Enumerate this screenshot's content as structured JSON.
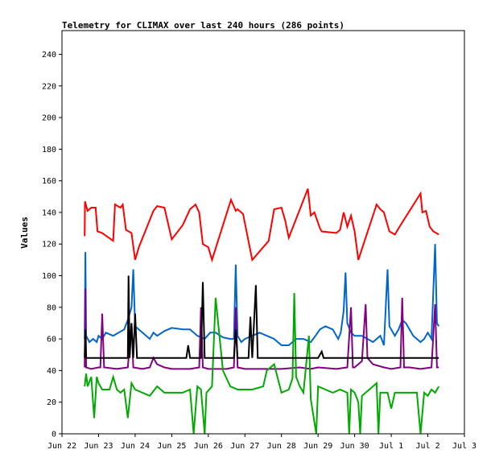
{
  "chart_data": {
    "type": "line",
    "title": "Telemetry for CLIMAX over last 240 hours (286 points)",
    "ylabel": "Values",
    "xlabel": "",
    "xlim": [
      0,
      11
    ],
    "ylim": [
      0,
      255
    ],
    "y_ticks": [
      0,
      20,
      40,
      60,
      80,
      100,
      120,
      140,
      160,
      180,
      200,
      220,
      240
    ],
    "x_ticks": [
      {
        "x": 0,
        "label": "Jun 22"
      },
      {
        "x": 1,
        "label": "Jun 23"
      },
      {
        "x": 2,
        "label": "Jun 24"
      },
      {
        "x": 3,
        "label": "Jun 25"
      },
      {
        "x": 4,
        "label": "Jun 26"
      },
      {
        "x": 5,
        "label": "Jun 27"
      },
      {
        "x": 6,
        "label": "Jun 28"
      },
      {
        "x": 7,
        "label": "Jun 29"
      },
      {
        "x": 8,
        "label": "Jun 30"
      },
      {
        "x": 9,
        "label": "Jul 1"
      },
      {
        "x": 10,
        "label": "Jul 2"
      },
      {
        "x": 11,
        "label": "Jul 3"
      }
    ],
    "grid": false,
    "legend": "none",
    "series": [
      {
        "color": "#ff0000",
        "points": [
          [
            0.62,
            125
          ],
          [
            0.63,
            147
          ],
          [
            0.7,
            141
          ],
          [
            0.8,
            143
          ],
          [
            0.92,
            143
          ],
          [
            0.97,
            128
          ],
          [
            1.1,
            127
          ],
          [
            1.4,
            122
          ],
          [
            1.45,
            145
          ],
          [
            1.6,
            143
          ],
          [
            1.66,
            145
          ],
          [
            1.75,
            129
          ],
          [
            1.9,
            127
          ],
          [
            2.0,
            110
          ],
          [
            2.1,
            118
          ],
          [
            2.5,
            141
          ],
          [
            2.6,
            144
          ],
          [
            2.8,
            143
          ],
          [
            3.0,
            123
          ],
          [
            3.3,
            132
          ],
          [
            3.5,
            142
          ],
          [
            3.65,
            145
          ],
          [
            3.75,
            140
          ],
          [
            3.85,
            120
          ],
          [
            4.0,
            118
          ],
          [
            4.1,
            110
          ],
          [
            4.62,
            148
          ],
          [
            4.75,
            141
          ],
          [
            4.8,
            142
          ],
          [
            4.95,
            139
          ],
          [
            5.2,
            110
          ],
          [
            5.65,
            122
          ],
          [
            5.8,
            142
          ],
          [
            6.0,
            143
          ],
          [
            6.1,
            135
          ],
          [
            6.2,
            124
          ],
          [
            6.72,
            155
          ],
          [
            6.8,
            138
          ],
          [
            6.9,
            140
          ],
          [
            7.05,
            130
          ],
          [
            7.1,
            128
          ],
          [
            7.5,
            127
          ],
          [
            7.6,
            129
          ],
          [
            7.7,
            140
          ],
          [
            7.8,
            131
          ],
          [
            7.9,
            138
          ],
          [
            8.0,
            128
          ],
          [
            8.1,
            110
          ],
          [
            8.6,
            145
          ],
          [
            8.7,
            142
          ],
          [
            8.8,
            140
          ],
          [
            8.95,
            128
          ],
          [
            9.1,
            126
          ],
          [
            9.2,
            130
          ],
          [
            9.8,
            152
          ],
          [
            9.85,
            140
          ],
          [
            9.95,
            141
          ],
          [
            10.05,
            131
          ],
          [
            10.15,
            128
          ],
          [
            10.3,
            126
          ]
        ]
      },
      {
        "color": "#0066cc",
        "points": [
          [
            0.62,
            60
          ],
          [
            0.64,
            115
          ],
          [
            0.66,
            62
          ],
          [
            0.75,
            58
          ],
          [
            0.85,
            60
          ],
          [
            0.95,
            58
          ],
          [
            1.0,
            62
          ],
          [
            1.1,
            60
          ],
          [
            1.2,
            64
          ],
          [
            1.4,
            62
          ],
          [
            1.55,
            64
          ],
          [
            1.7,
            66
          ],
          [
            1.8,
            72
          ],
          [
            1.9,
            80
          ],
          [
            1.95,
            104
          ],
          [
            2.0,
            68
          ],
          [
            2.2,
            64
          ],
          [
            2.4,
            60
          ],
          [
            2.5,
            64
          ],
          [
            2.6,
            62
          ],
          [
            2.8,
            65
          ],
          [
            3.0,
            67
          ],
          [
            3.3,
            66
          ],
          [
            3.5,
            66
          ],
          [
            3.7,
            62
          ],
          [
            3.9,
            60
          ],
          [
            4.05,
            64
          ],
          [
            4.2,
            64
          ],
          [
            4.4,
            61
          ],
          [
            4.6,
            60
          ],
          [
            4.7,
            60
          ],
          [
            4.75,
            107
          ],
          [
            4.8,
            62
          ],
          [
            4.9,
            58
          ],
          [
            5.0,
            60
          ],
          [
            5.2,
            62
          ],
          [
            5.4,
            64
          ],
          [
            5.6,
            62
          ],
          [
            5.8,
            60
          ],
          [
            6.0,
            56
          ],
          [
            6.2,
            56
          ],
          [
            6.4,
            60
          ],
          [
            6.6,
            60
          ],
          [
            6.8,
            58
          ],
          [
            6.9,
            61
          ],
          [
            7.05,
            66
          ],
          [
            7.2,
            68
          ],
          [
            7.4,
            66
          ],
          [
            7.55,
            60
          ],
          [
            7.62,
            64
          ],
          [
            7.7,
            78
          ],
          [
            7.75,
            102
          ],
          [
            7.8,
            70
          ],
          [
            7.9,
            64
          ],
          [
            8.0,
            62
          ],
          [
            8.2,
            62
          ],
          [
            8.5,
            58
          ],
          [
            8.7,
            62
          ],
          [
            8.8,
            56
          ],
          [
            8.9,
            104
          ],
          [
            8.95,
            68
          ],
          [
            9.1,
            62
          ],
          [
            9.2,
            66
          ],
          [
            9.3,
            72
          ],
          [
            9.4,
            70
          ],
          [
            9.6,
            62
          ],
          [
            9.8,
            58
          ],
          [
            9.9,
            60
          ],
          [
            10.0,
            64
          ],
          [
            10.1,
            60
          ],
          [
            10.2,
            120
          ],
          [
            10.25,
            70
          ],
          [
            10.3,
            68
          ]
        ]
      },
      {
        "color": "#800080",
        "points": [
          [
            0.62,
            42
          ],
          [
            0.64,
            92
          ],
          [
            0.66,
            42
          ],
          [
            0.8,
            41
          ],
          [
            1.0,
            42
          ],
          [
            1.05,
            42
          ],
          [
            1.1,
            76
          ],
          [
            1.15,
            42
          ],
          [
            1.5,
            41
          ],
          [
            1.8,
            42
          ],
          [
            1.9,
            70
          ],
          [
            1.95,
            42
          ],
          [
            2.2,
            41
          ],
          [
            2.4,
            42
          ],
          [
            2.5,
            48
          ],
          [
            2.6,
            44
          ],
          [
            2.8,
            42
          ],
          [
            3.0,
            41
          ],
          [
            3.5,
            41
          ],
          [
            3.75,
            42
          ],
          [
            3.8,
            80
          ],
          [
            3.85,
            42
          ],
          [
            4.0,
            41
          ],
          [
            4.5,
            41
          ],
          [
            4.7,
            42
          ],
          [
            4.75,
            80
          ],
          [
            4.8,
            42
          ],
          [
            5.0,
            41
          ],
          [
            6.0,
            41
          ],
          [
            6.5,
            42
          ],
          [
            6.8,
            41
          ],
          [
            7.0,
            42
          ],
          [
            7.5,
            41
          ],
          [
            7.8,
            42
          ],
          [
            7.9,
            80
          ],
          [
            7.95,
            42
          ],
          [
            8.0,
            42
          ],
          [
            8.2,
            46
          ],
          [
            8.3,
            82
          ],
          [
            8.35,
            48
          ],
          [
            8.5,
            44
          ],
          [
            8.8,
            42
          ],
          [
            9.0,
            41
          ],
          [
            9.25,
            42
          ],
          [
            9.3,
            86
          ],
          [
            9.35,
            42
          ],
          [
            9.5,
            42
          ],
          [
            9.8,
            41
          ],
          [
            10.1,
            42
          ],
          [
            10.2,
            82
          ],
          [
            10.25,
            42
          ],
          [
            10.3,
            42
          ]
        ]
      },
      {
        "color": "#00aa00",
        "points": [
          [
            0.62,
            30
          ],
          [
            0.66,
            38
          ],
          [
            0.7,
            30
          ],
          [
            0.8,
            36
          ],
          [
            0.88,
            10
          ],
          [
            0.95,
            36
          ],
          [
            1.0,
            32
          ],
          [
            1.1,
            28
          ],
          [
            1.3,
            28
          ],
          [
            1.4,
            36
          ],
          [
            1.5,
            28
          ],
          [
            1.6,
            26
          ],
          [
            1.7,
            28
          ],
          [
            1.8,
            10
          ],
          [
            1.9,
            32
          ],
          [
            2.0,
            28
          ],
          [
            2.2,
            26
          ],
          [
            2.4,
            24
          ],
          [
            2.6,
            30
          ],
          [
            2.8,
            26
          ],
          [
            3.0,
            26
          ],
          [
            3.3,
            26
          ],
          [
            3.5,
            28
          ],
          [
            3.6,
            0
          ],
          [
            3.7,
            30
          ],
          [
            3.8,
            28
          ],
          [
            3.9,
            0
          ],
          [
            3.95,
            26
          ],
          [
            4.1,
            30
          ],
          [
            4.2,
            86
          ],
          [
            4.4,
            40
          ],
          [
            4.6,
            30
          ],
          [
            4.8,
            28
          ],
          [
            5.0,
            28
          ],
          [
            5.2,
            28
          ],
          [
            5.5,
            30
          ],
          [
            5.6,
            40
          ],
          [
            5.8,
            44
          ],
          [
            6.0,
            26
          ],
          [
            6.2,
            28
          ],
          [
            6.3,
            35
          ],
          [
            6.35,
            89
          ],
          [
            6.4,
            36
          ],
          [
            6.5,
            30
          ],
          [
            6.6,
            26
          ],
          [
            6.75,
            62
          ],
          [
            6.8,
            22
          ],
          [
            6.95,
            0
          ],
          [
            7.0,
            30
          ],
          [
            7.2,
            28
          ],
          [
            7.4,
            26
          ],
          [
            7.6,
            28
          ],
          [
            7.8,
            26
          ],
          [
            7.85,
            0
          ],
          [
            7.9,
            28
          ],
          [
            8.0,
            26
          ],
          [
            8.1,
            20
          ],
          [
            8.15,
            0
          ],
          [
            8.2,
            24
          ],
          [
            8.4,
            28
          ],
          [
            8.6,
            32
          ],
          [
            8.65,
            0
          ],
          [
            8.7,
            26
          ],
          [
            8.9,
            26
          ],
          [
            9.0,
            16
          ],
          [
            9.1,
            26
          ],
          [
            9.3,
            26
          ],
          [
            9.5,
            26
          ],
          [
            9.7,
            26
          ],
          [
            9.8,
            0
          ],
          [
            9.9,
            26
          ],
          [
            10.0,
            24
          ],
          [
            10.1,
            28
          ],
          [
            10.2,
            26
          ],
          [
            10.3,
            30
          ]
        ]
      },
      {
        "color": "#000000",
        "points": [
          [
            0.62,
            48
          ],
          [
            0.64,
            66
          ],
          [
            0.66,
            48
          ],
          [
            1.0,
            48
          ],
          [
            1.8,
            48
          ],
          [
            1.82,
            100
          ],
          [
            1.85,
            48
          ],
          [
            1.9,
            70
          ],
          [
            1.95,
            48
          ],
          [
            2.0,
            76
          ],
          [
            2.05,
            48
          ],
          [
            3.0,
            48
          ],
          [
            3.4,
            48
          ],
          [
            3.45,
            56
          ],
          [
            3.5,
            48
          ],
          [
            3.8,
            48
          ],
          [
            3.85,
            96
          ],
          [
            3.9,
            48
          ],
          [
            4.7,
            48
          ],
          [
            4.75,
            66
          ],
          [
            4.8,
            48
          ],
          [
            5.1,
            48
          ],
          [
            5.15,
            74
          ],
          [
            5.2,
            48
          ],
          [
            5.3,
            94
          ],
          [
            5.35,
            48
          ],
          [
            7.0,
            48
          ],
          [
            7.1,
            52
          ],
          [
            7.15,
            48
          ],
          [
            10.3,
            48
          ]
        ]
      }
    ]
  }
}
